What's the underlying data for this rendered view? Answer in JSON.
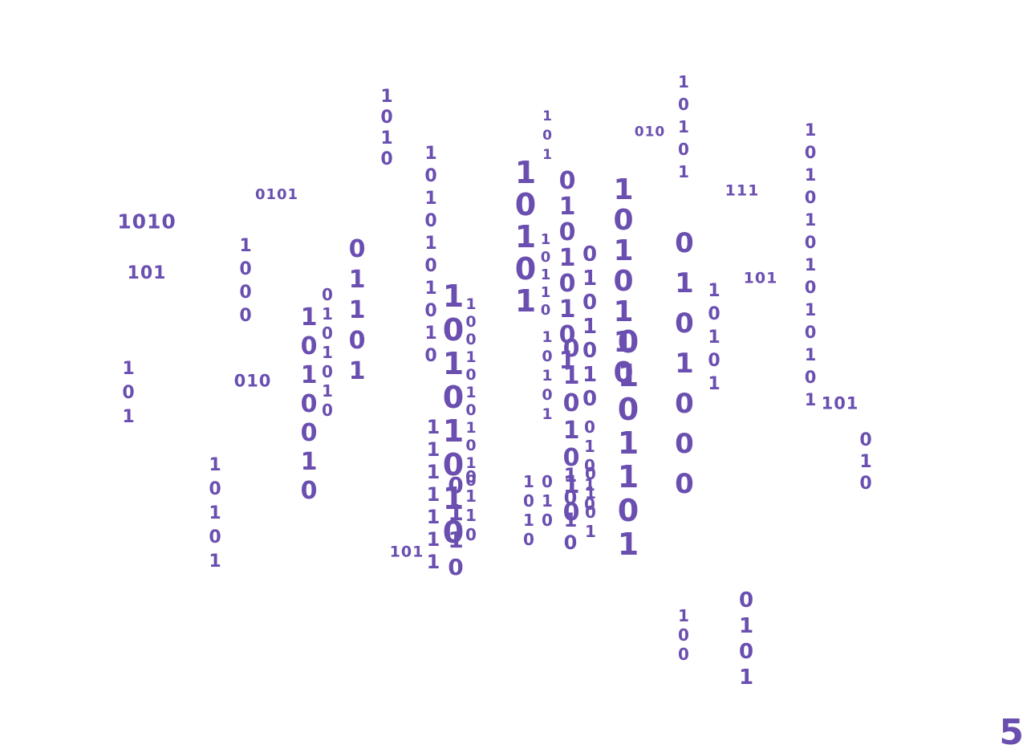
{
  "ink_color": "#6a4fb0",
  "page_number": "5",
  "vertical_strings": [
    "1010",
    "10101",
    "1010101010101",
    "1010101010",
    "101",
    "10101",
    "01010101",
    "10110",
    "0101010",
    "10010101010",
    "10101010",
    "1010110",
    "0101101",
    "0101000",
    "1000",
    "10101",
    "01101",
    "0101010",
    "1010010",
    "10101",
    "0101010",
    "01010",
    "0110",
    "0110",
    "1111111",
    "1010",
    "010",
    "1010",
    "0101",
    "10101",
    "101",
    "010",
    "100",
    "0101"
  ],
  "horizontal_strings": [
    "010",
    "0101",
    "1010",
    "101",
    "111",
    "101",
    "010",
    "101",
    "101"
  ]
}
